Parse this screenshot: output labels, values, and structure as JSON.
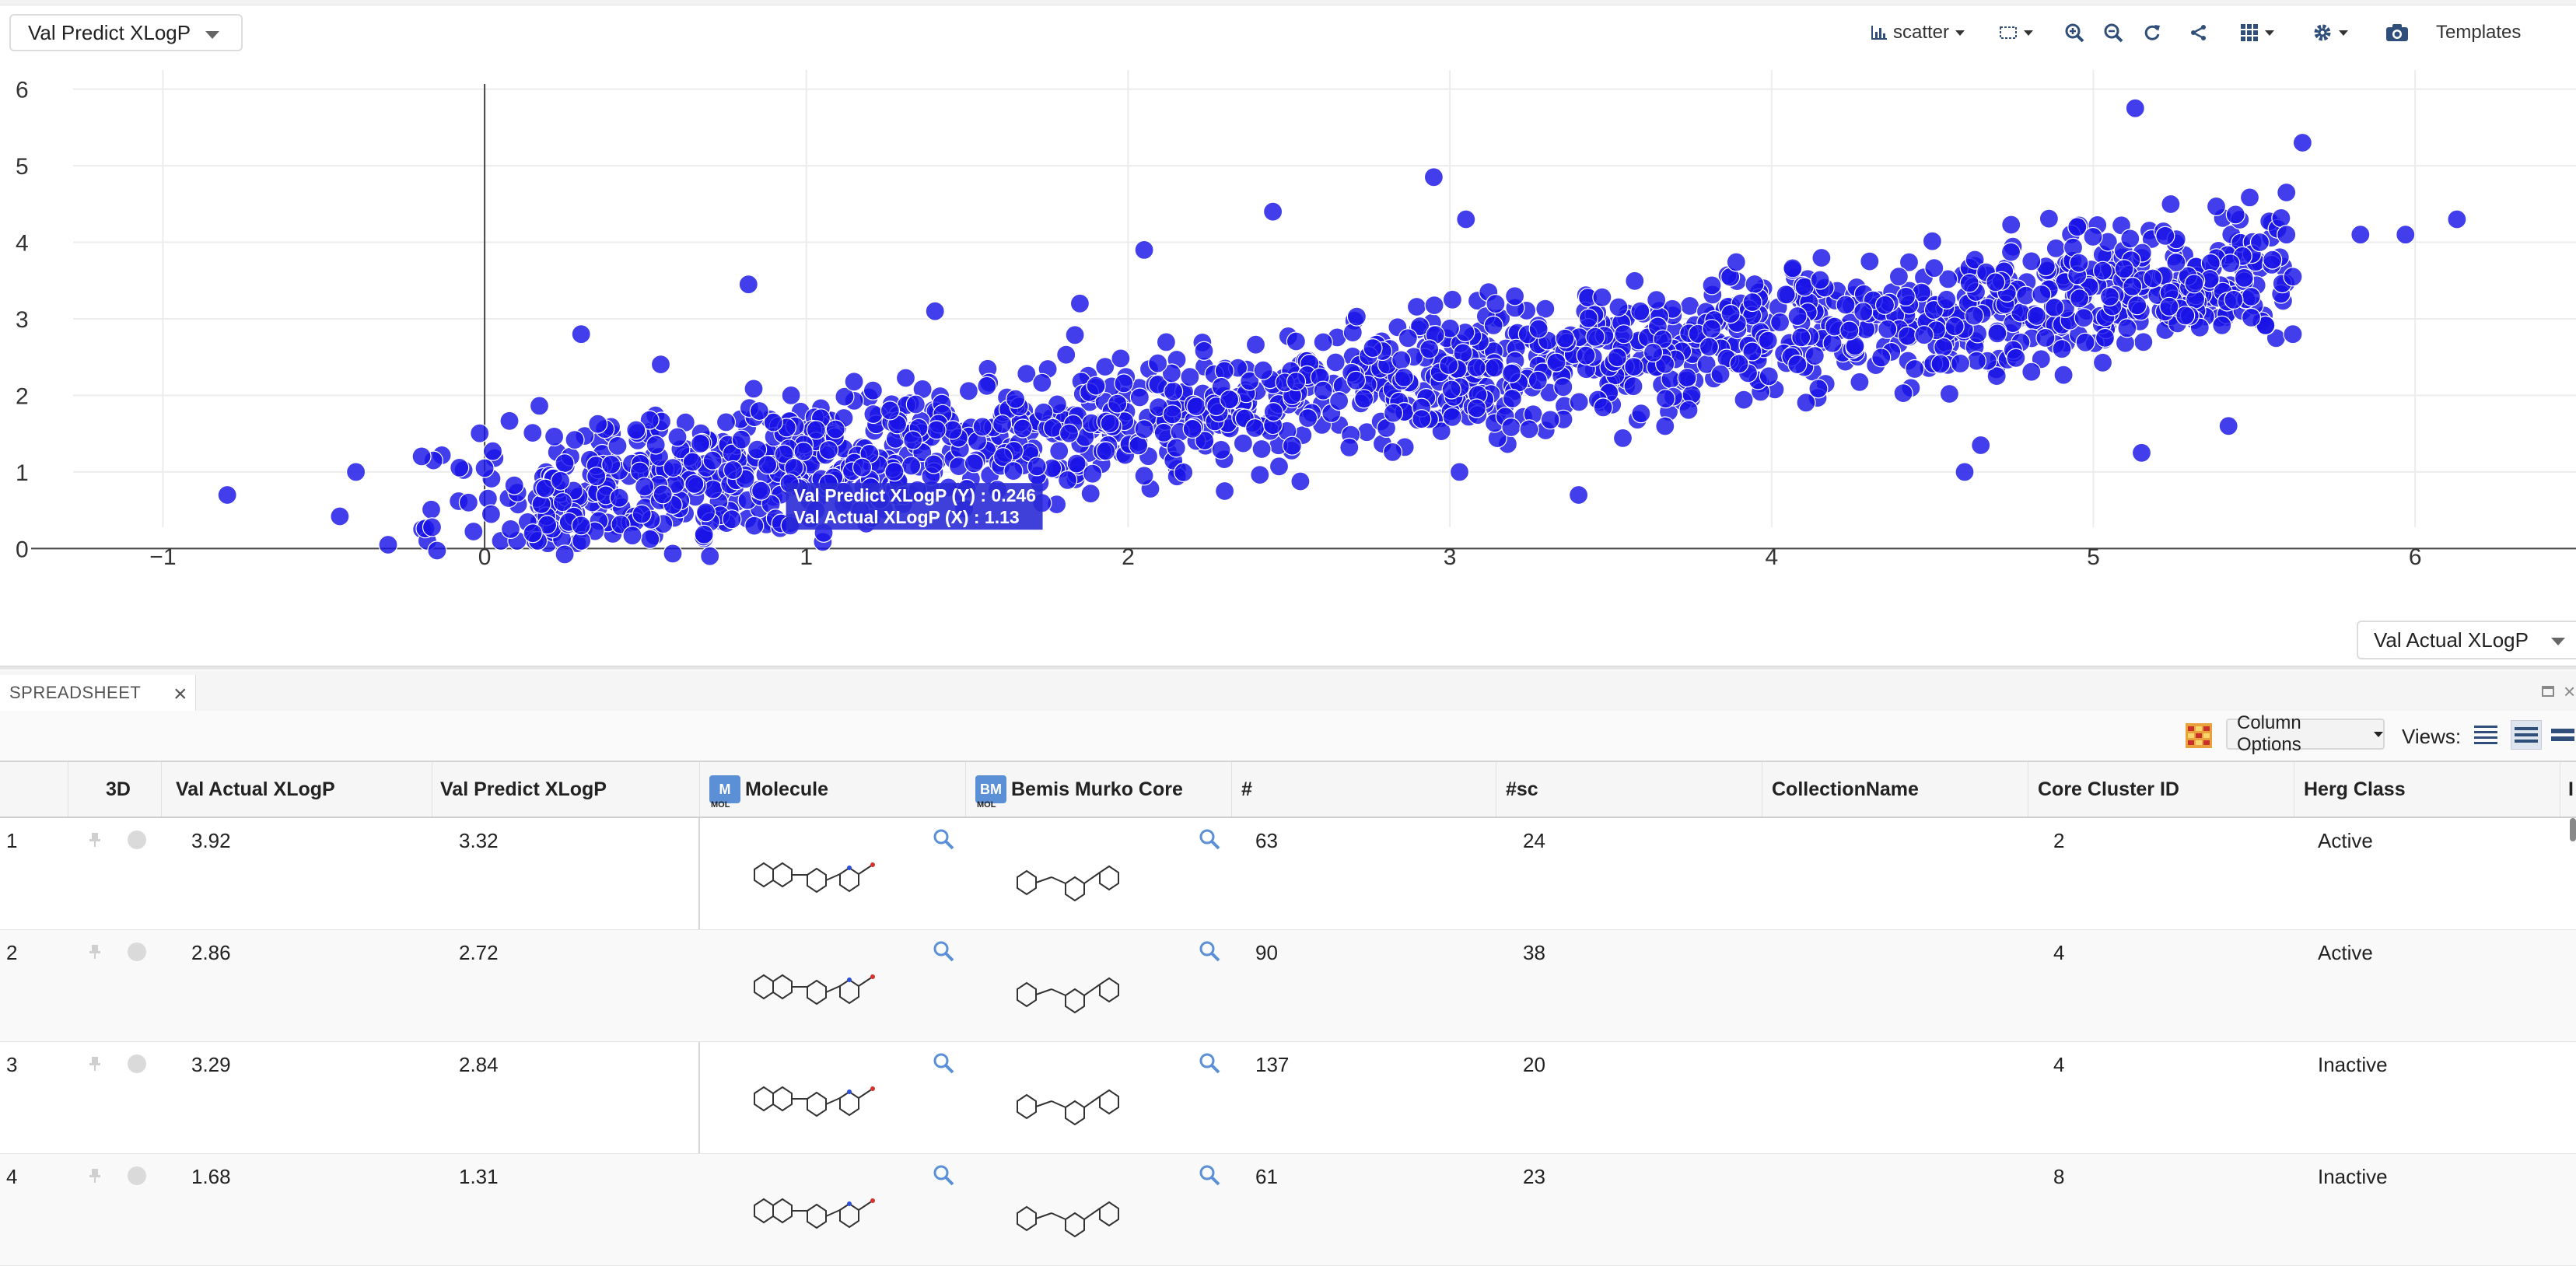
{
  "y_axis_select": {
    "value": "Val Predict XLogP"
  },
  "x_axis_select": {
    "value": "Val Actual XLogP"
  },
  "toolbar": {
    "plot_type": "scatter",
    "templates_label": "Templates",
    "icons": [
      "bar-chart-icon",
      "select-box-icon",
      "zoom-in-icon",
      "zoom-out-icon",
      "reset-icon",
      "share-icon",
      "grid-icon",
      "settings-icon",
      "camera-icon"
    ]
  },
  "chart_data": {
    "type": "scatter",
    "xlim": [
      -1.25,
      6.5
    ],
    "ylim": [
      -0.25,
      6.25
    ],
    "x_ticks": [
      "−1",
      "0",
      "1",
      "2",
      "3",
      "4",
      "5",
      "6"
    ],
    "y_ticks": [
      "0",
      "1",
      "2",
      "3",
      "4",
      "5",
      "6"
    ],
    "marker_color": "#1a14e6",
    "trend": {
      "slope": 0.56,
      "intercept": 0.55
    },
    "outliers": [
      [
        -0.8,
        0.7
      ],
      [
        -0.4,
        1.0
      ],
      [
        -0.45,
        0.42
      ],
      [
        -0.3,
        0.05
      ],
      [
        0.3,
        2.8
      ],
      [
        0.82,
        3.45
      ],
      [
        2.45,
        4.4
      ],
      [
        2.95,
        4.85
      ],
      [
        5.13,
        5.75
      ],
      [
        5.65,
        5.3
      ],
      [
        6.13,
        4.3
      ],
      [
        5.97,
        4.1
      ],
      [
        5.83,
        4.1
      ],
      [
        4.6,
        1.0
      ],
      [
        4.65,
        1.35
      ],
      [
        5.15,
        1.25
      ],
      [
        5.42,
        1.6
      ],
      [
        3.4,
        0.7
      ],
      [
        3.03,
        1.0
      ],
      [
        2.05,
        0.95
      ],
      [
        1.2,
        0.8
      ],
      [
        0.95,
        0.3
      ],
      [
        0.7,
        -0.1
      ],
      [
        1.4,
        3.1
      ],
      [
        2.05,
        3.9
      ],
      [
        1.85,
        3.2
      ],
      [
        0.3,
        0.3
      ],
      [
        3.05,
        4.3
      ],
      [
        5.62,
        2.8
      ],
      [
        5.62,
        3.55
      ],
      [
        5.6,
        4.65
      ],
      [
        5.6,
        4.1
      ],
      [
        0.0,
        1.05
      ],
      [
        -0.05,
        0.6
      ],
      [
        0.15,
        0.2
      ],
      [
        0.02,
        0.45
      ],
      [
        2.3,
        0.75
      ],
      [
        4.95,
        4.2
      ]
    ],
    "tooltip": {
      "y_line": "Val Predict XLogP (Y) : 0.246",
      "x_line": "Val Actual XLogP (X) : 1.13",
      "x": 1.13,
      "y": 0.246
    }
  },
  "spreadsheet": {
    "tab_label": "SPREADSHEET",
    "column_options_label": "Column Options",
    "views_label": "Views:",
    "columns": {
      "threed": "3D",
      "actual": "Val Actual XLogP",
      "predict": "Val Predict XLogP",
      "molecule": "Molecule",
      "murko": "Bemis Murko Core",
      "count": "#",
      "sc": "#sc",
      "collection": "CollectionName",
      "cluster": "Core Cluster ID",
      "herg": "Herg Class",
      "trailing": "I"
    },
    "badges": {
      "mol": "M",
      "bm": "BM",
      "sub": "MOL"
    },
    "rows": [
      {
        "idx": "1",
        "actual": "3.92",
        "predict": "3.32",
        "count": "63",
        "sc": "24",
        "collection": "",
        "cluster": "2",
        "herg": "Active"
      },
      {
        "idx": "2",
        "actual": "2.86",
        "predict": "2.72",
        "count": "90",
        "sc": "38",
        "collection": "",
        "cluster": "4",
        "herg": "Active"
      },
      {
        "idx": "3",
        "actual": "3.29",
        "predict": "2.84",
        "count": "137",
        "sc": "20",
        "collection": "",
        "cluster": "4",
        "herg": "Inactive"
      },
      {
        "idx": "4",
        "actual": "1.68",
        "predict": "1.31",
        "count": "61",
        "sc": "23",
        "collection": "",
        "cluster": "8",
        "herg": "Inactive"
      }
    ]
  }
}
